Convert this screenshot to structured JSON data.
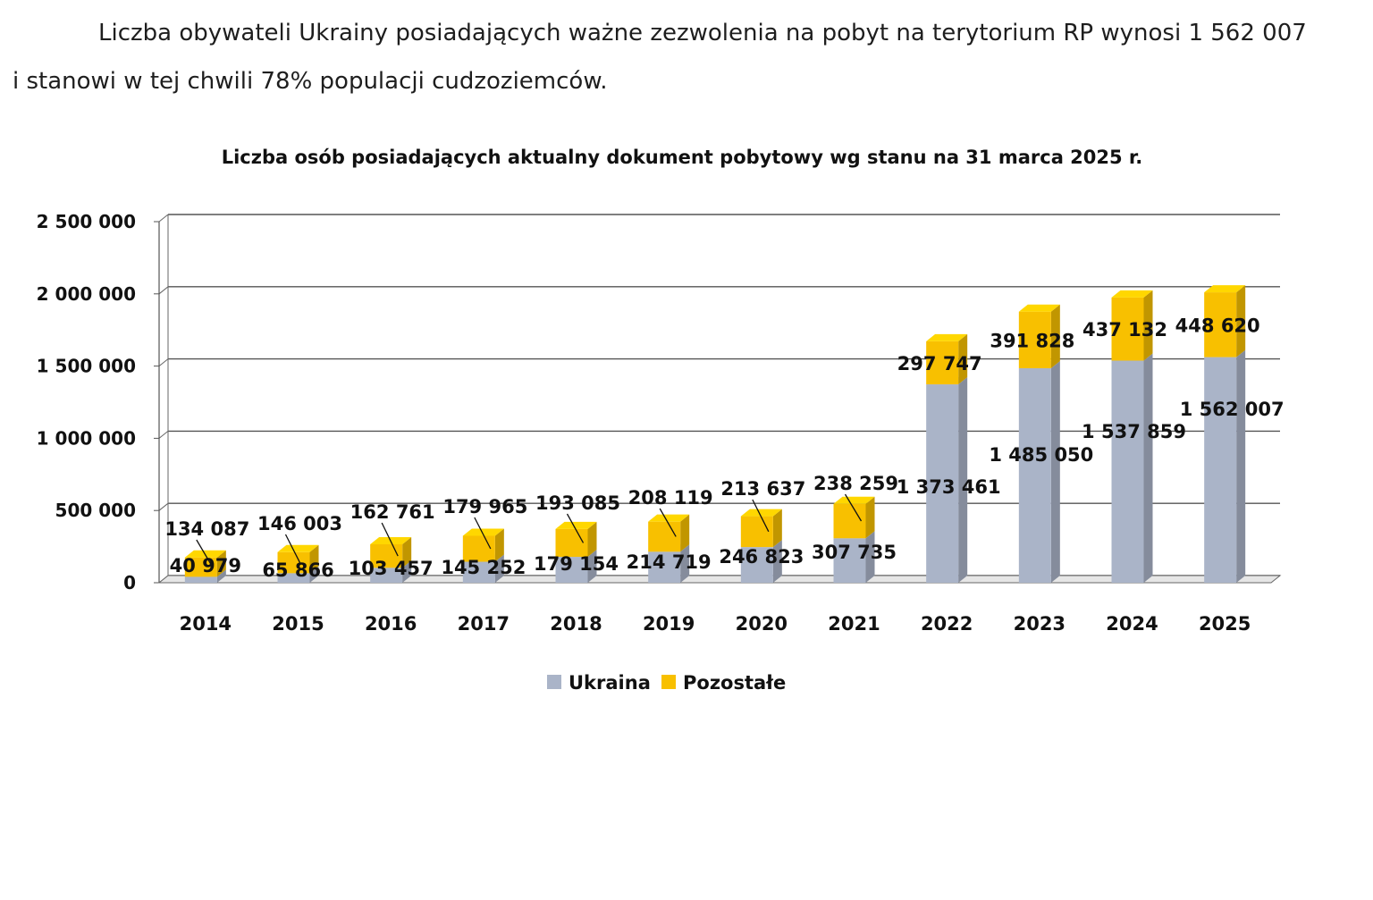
{
  "intro": {
    "line1": "Liczba obywateli Ukrainy posiadających ważne zezwolenia na pobyt na terytorium RP wynosi 1 562 007",
    "line2": "i stanowi w tej chwili 78% populacji cudzoziemców."
  },
  "chart_data": {
    "type": "bar",
    "stacked": true,
    "style": "3d-column",
    "title": "Liczba osób posiadających aktualny dokument pobytowy wg stanu na 31 marca 2025 r.",
    "categories": [
      "2014",
      "2015",
      "2016",
      "2017",
      "2018",
      "2019",
      "2020",
      "2021",
      "2022",
      "2023",
      "2024",
      "2025"
    ],
    "series": [
      {
        "name": "Ukraina",
        "color": "#aab4c8",
        "values": [
          40979,
          65866,
          103457,
          145252,
          179154,
          214719,
          246823,
          307735,
          1373461,
          1485050,
          1537859,
          1562007
        ],
        "labels": [
          "40 979",
          "65 866",
          "103 457",
          "145 252",
          "179 154",
          "214 719",
          "246 823",
          "307 735",
          "1 373 461",
          "1 485 050",
          "1 537 859",
          "1 562 007"
        ]
      },
      {
        "name": "Pozostałe",
        "color": "#f8c000",
        "values": [
          134087,
          146003,
          162761,
          179965,
          193085,
          208119,
          213637,
          238259,
          297747,
          391828,
          437132,
          448620
        ],
        "labels": [
          "134 087",
          "146 003",
          "162 761",
          "179 965",
          "193 085",
          "208 119",
          "213 637",
          "238 259",
          "297 747",
          "391 828",
          "437 132",
          "448 620"
        ]
      }
    ],
    "ylim": [
      0,
      2500000
    ],
    "yticks": [
      0,
      500000,
      1000000,
      1500000,
      2000000,
      2500000
    ],
    "ytick_labels": [
      "0",
      "500 000",
      "1 000 000",
      "1 500 000",
      "2 000 000",
      "2 500 000"
    ],
    "grid": true,
    "legend": "bottom-center"
  }
}
